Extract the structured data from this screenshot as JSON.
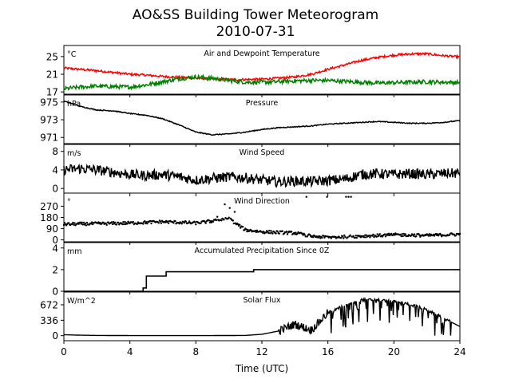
{
  "title_line1": "AO&SS Building Tower Meteorogram",
  "title_line2": "2010-07-31",
  "xlabel": "Time (UTC)",
  "x_ticks": [
    0,
    4,
    8,
    12,
    16,
    20,
    24
  ],
  "colors": {
    "temperature": "#ff0000",
    "dewpoint": "#008000",
    "black": "#000000"
  },
  "chart_data": [
    {
      "type": "line",
      "title": "Air and Dewpoint Temperature",
      "unit": "°C",
      "ylim": [
        16.5,
        27.5
      ],
      "yticks": [
        17,
        21,
        25
      ],
      "x": [
        0,
        1,
        2,
        3,
        4,
        5,
        6,
        7,
        8,
        9,
        10,
        11,
        12,
        13,
        14,
        15,
        16,
        17,
        18,
        19,
        20,
        21,
        22,
        23,
        24
      ],
      "series": [
        {
          "key": "temperature",
          "values": [
            22.4,
            22.1,
            21.8,
            21.4,
            21.0,
            20.8,
            20.5,
            20.3,
            20.1,
            19.9,
            19.8,
            19.8,
            19.9,
            20.1,
            20.4,
            21.0,
            22.1,
            23.1,
            24.1,
            24.8,
            25.3,
            25.6,
            25.6,
            25.2,
            24.9
          ]
        },
        {
          "key": "dewpoint",
          "values": [
            17.7,
            18.1,
            18.3,
            18.2,
            18.1,
            18.6,
            19.3,
            20.0,
            20.4,
            20.1,
            19.6,
            19.2,
            19.2,
            19.3,
            19.5,
            19.6,
            19.6,
            19.4,
            19.2,
            19.0,
            19.1,
            19.2,
            19.3,
            19.2,
            19.1
          ]
        }
      ]
    },
    {
      "type": "line",
      "title": "Pressure",
      "unit": "hPa",
      "ylim": [
        970.3,
        975.8
      ],
      "yticks": [
        971,
        973,
        975
      ],
      "x": [
        0,
        1,
        2,
        3,
        4,
        5,
        6,
        7,
        8,
        9,
        10,
        11,
        12,
        13,
        14,
        15,
        16,
        17,
        18,
        19,
        20,
        21,
        22,
        23,
        24
      ],
      "series": [
        {
          "key": "pressure",
          "values": [
            975.1,
            974.5,
            974.1,
            974.0,
            973.7,
            973.5,
            973.1,
            972.4,
            971.6,
            971.3,
            971.4,
            971.6,
            971.9,
            972.1,
            972.2,
            972.3,
            972.5,
            972.6,
            972.7,
            972.8,
            972.7,
            972.6,
            972.6,
            972.7,
            972.9
          ]
        }
      ]
    },
    {
      "type": "line",
      "title": "Wind Speed",
      "unit": "m/s",
      "ylim": [
        -1,
        9.5
      ],
      "yticks": [
        0,
        4,
        8
      ],
      "x": [
        0,
        1,
        2,
        3,
        4,
        5,
        6,
        7,
        8,
        9,
        10,
        11,
        12,
        13,
        14,
        15,
        16,
        17,
        18,
        19,
        20,
        21,
        22,
        23,
        24
      ],
      "series": [
        {
          "key": "wind_speed",
          "values": [
            4.0,
            4.3,
            4.0,
            3.5,
            3.0,
            2.8,
            3.0,
            2.5,
            1.8,
            2.2,
            2.5,
            2.3,
            1.8,
            1.4,
            1.6,
            1.5,
            1.7,
            2.0,
            3.0,
            3.2,
            3.0,
            3.2,
            3.0,
            3.2,
            3.3
          ]
        }
      ]
    },
    {
      "type": "scatter",
      "title": "Wind Direction",
      "unit": "°",
      "ylim": [
        -15,
        375
      ],
      "yticks": [
        0,
        90,
        180,
        270
      ],
      "x": [
        0,
        1,
        2,
        3,
        4,
        5,
        6,
        7,
        8,
        9,
        10,
        11,
        12,
        13,
        14,
        15,
        16,
        17,
        18,
        19,
        20,
        21,
        22,
        23,
        24
      ],
      "series": [
        {
          "key": "wind_direction",
          "values": [
            125,
            128,
            130,
            132,
            135,
            140,
            145,
            140,
            135,
            150,
            170,
            80,
            65,
            60,
            55,
            30,
            20,
            25,
            30,
            35,
            40,
            40,
            35,
            40,
            45
          ]
        }
      ]
    },
    {
      "type": "line",
      "title": "Accumulated Precipitation Since 0Z",
      "unit": "mm",
      "ylim": [
        0,
        4.5
      ],
      "yticks": [
        0,
        2,
        4
      ],
      "step_x": [
        0,
        4.8,
        4.8,
        5.0,
        5.0,
        6.2,
        6.2,
        11.5,
        11.5,
        24
      ],
      "step_y": [
        0,
        0,
        0.3,
        0.3,
        1.4,
        1.4,
        1.8,
        1.8,
        2.0,
        2.0
      ]
    },
    {
      "type": "line",
      "title": "Solar Flux",
      "unit": "W/m^2",
      "ylim": [
        -110,
        950
      ],
      "yticks": [
        0,
        336,
        672
      ],
      "x": [
        0,
        1,
        2,
        3,
        4,
        5,
        6,
        7,
        8,
        9,
        10,
        11,
        12,
        13,
        14,
        15,
        16,
        17,
        18,
        19,
        20,
        21,
        22,
        23,
        24
      ],
      "series": [
        {
          "key": "solar_flux",
          "values": [
            20,
            10,
            5,
            3,
            2,
            2,
            2,
            2,
            2,
            2,
            3,
            5,
            30,
            100,
            250,
            120,
            500,
            650,
            780,
            780,
            740,
            680,
            560,
            380,
            200
          ]
        }
      ]
    }
  ]
}
